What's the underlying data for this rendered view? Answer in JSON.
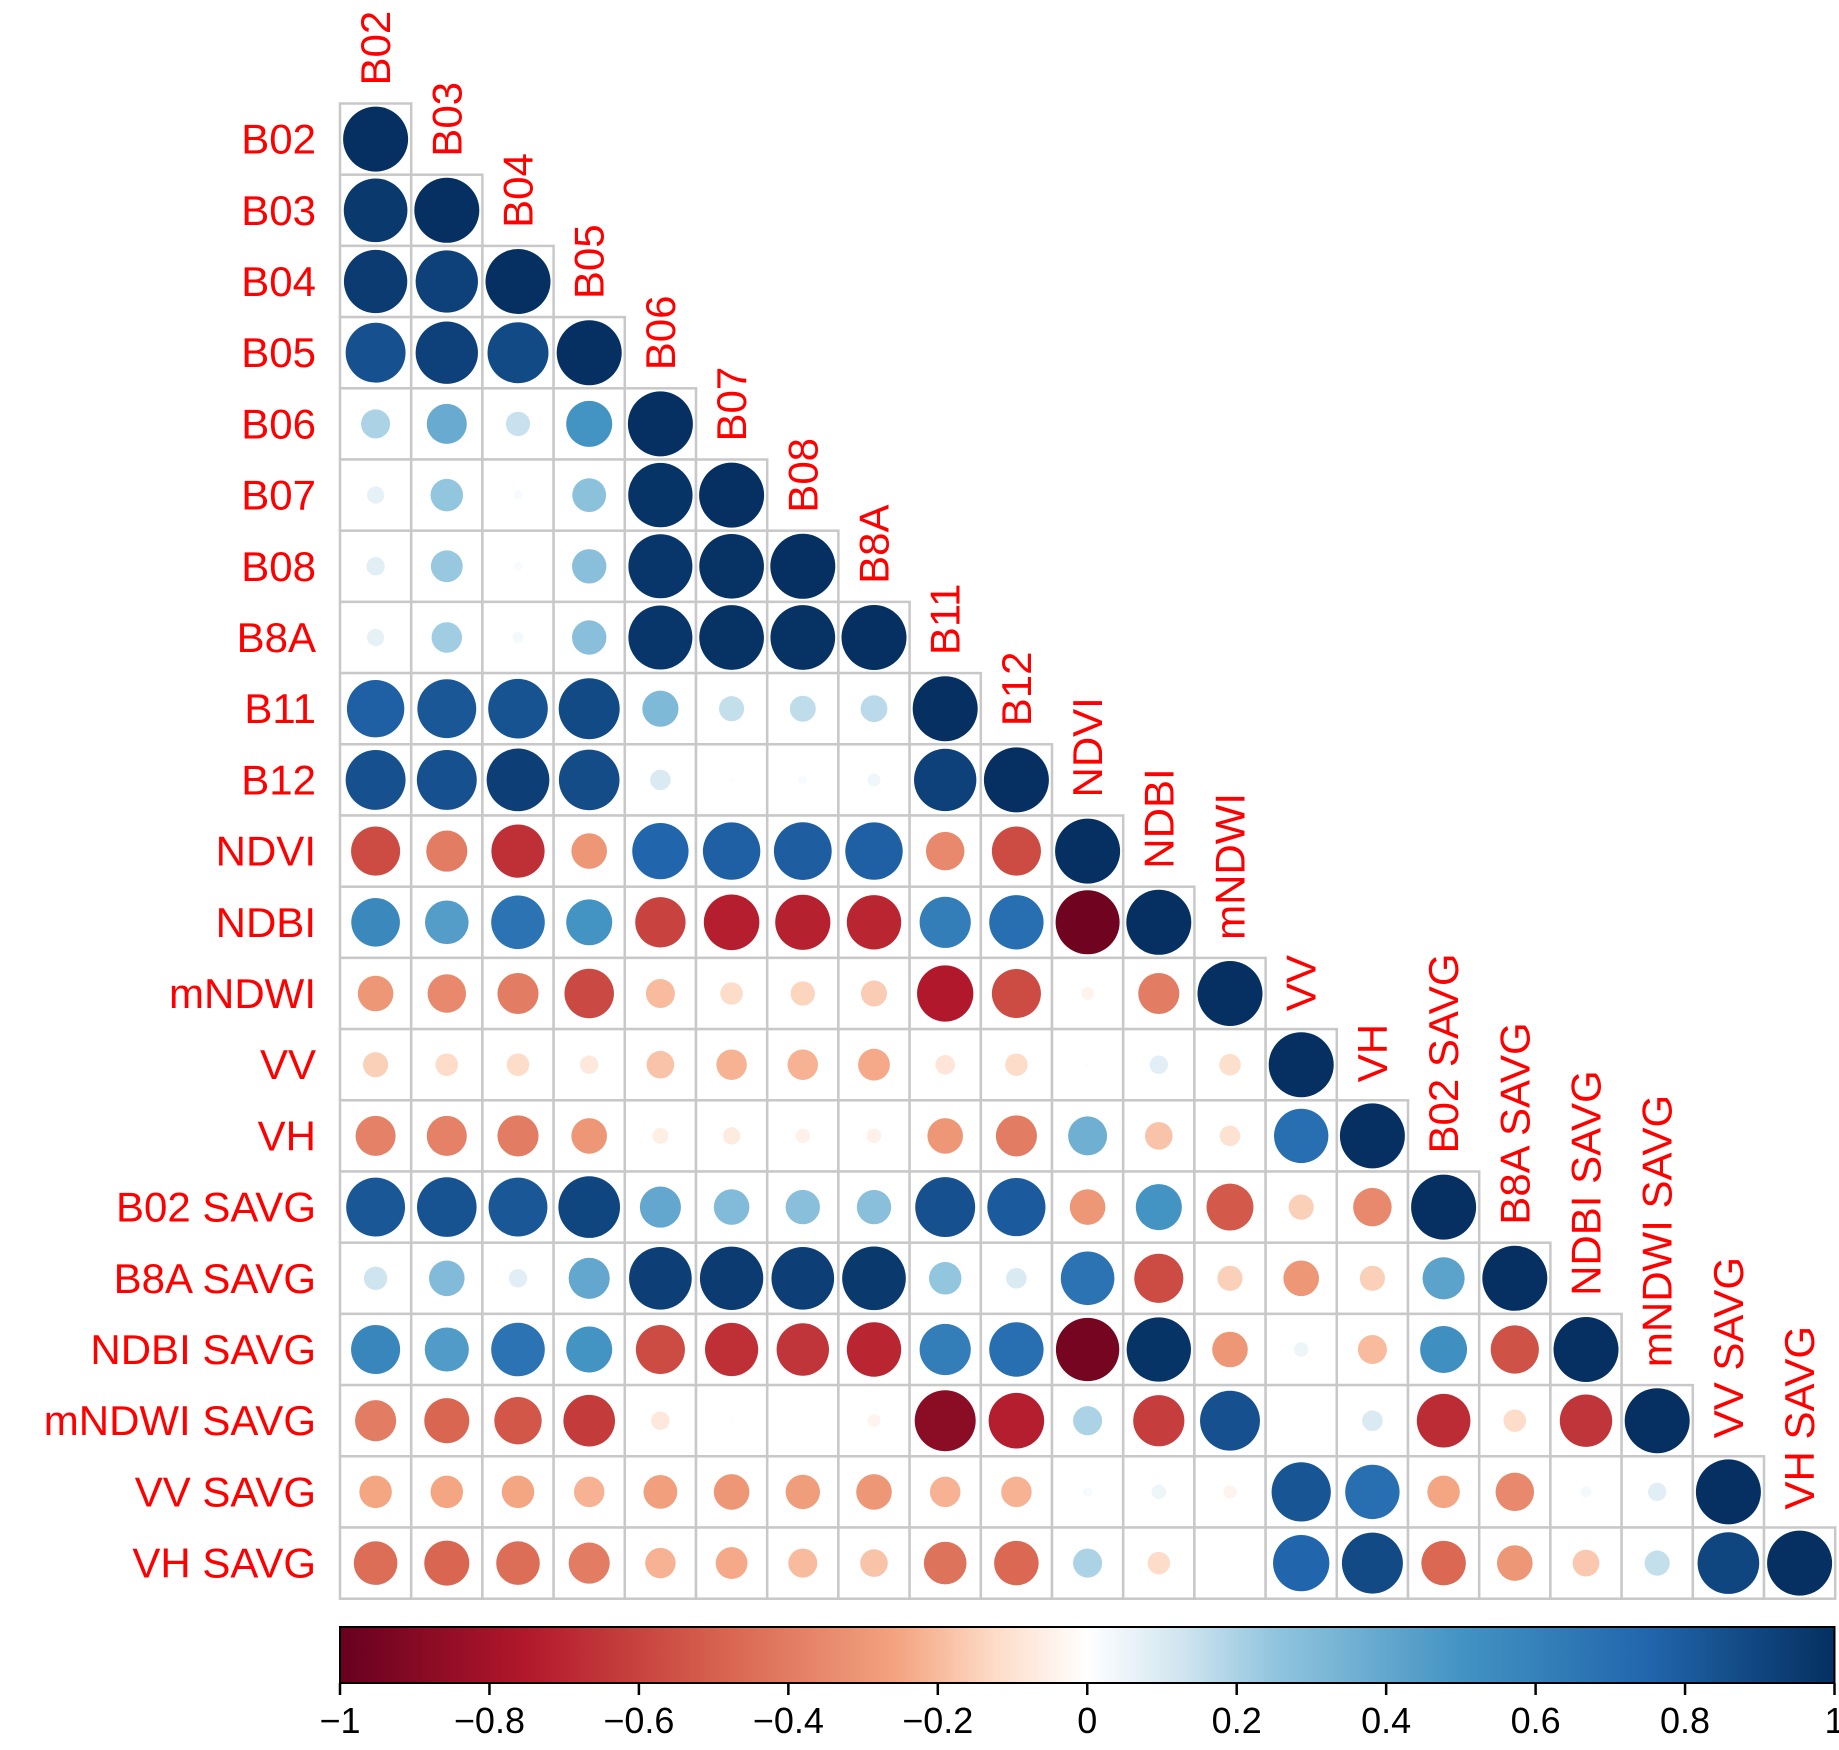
{
  "chart_data": {
    "type": "heatmap",
    "variables": [
      "B02",
      "B03",
      "B04",
      "B05",
      "B06",
      "B07",
      "B08",
      "B8A",
      "B11",
      "B12",
      "NDVI",
      "NDBI",
      "mNDWI",
      "VV",
      "VH",
      "B02 SAVG",
      "B8A SAVG",
      "NDBI SAVG",
      "mNDWI SAVG",
      "VV SAVG",
      "VH SAVG"
    ],
    "matrix": [
      [
        1
      ],
      [
        0.96,
        1
      ],
      [
        0.95,
        0.92,
        1
      ],
      [
        0.85,
        0.92,
        0.88,
        1
      ],
      [
        0.2,
        0.38,
        0.14,
        0.5,
        1
      ],
      [
        0.07,
        0.25,
        0.02,
        0.27,
        0.98,
        1
      ],
      [
        0.08,
        0.24,
        0.02,
        0.28,
        0.97,
        0.99,
        1
      ],
      [
        0.07,
        0.22,
        0.03,
        0.28,
        0.97,
        0.99,
        0.99,
        1
      ],
      [
        0.78,
        0.82,
        0.84,
        0.88,
        0.31,
        0.15,
        0.16,
        0.17,
        1
      ],
      [
        0.85,
        0.85,
        0.93,
        0.87,
        0.1,
        0.01,
        0.02,
        0.04,
        0.92,
        1
      ],
      [
        -0.57,
        -0.4,
        -0.67,
        -0.3,
        0.75,
        0.78,
        0.79,
        0.78,
        -0.35,
        -0.57,
        1
      ],
      [
        0.56,
        0.45,
        0.68,
        0.5,
        -0.6,
        -0.73,
        -0.72,
        -0.7,
        0.62,
        0.7,
        -0.97,
        1
      ],
      [
        -0.3,
        -0.35,
        -0.4,
        -0.58,
        -0.2,
        -0.12,
        -0.14,
        -0.16,
        -0.75,
        -0.57,
        -0.04,
        -0.4,
        1
      ],
      [
        -0.15,
        -0.12,
        -0.12,
        -0.08,
        -0.18,
        -0.22,
        -0.22,
        -0.24,
        -0.09,
        -0.12,
        0.01,
        0.08,
        -0.11,
        1
      ],
      [
        -0.38,
        -0.38,
        -0.4,
        -0.3,
        -0.06,
        -0.07,
        -0.05,
        -0.05,
        -0.3,
        -0.4,
        0.36,
        -0.18,
        -0.1,
        0.7,
        1
      ],
      [
        0.82,
        0.84,
        0.82,
        0.9,
        0.4,
        0.3,
        0.28,
        0.28,
        0.85,
        0.8,
        -0.3,
        0.5,
        -0.52,
        -0.15,
        -0.35,
        1
      ],
      [
        0.13,
        0.3,
        0.08,
        0.4,
        0.93,
        0.95,
        0.93,
        0.96,
        0.25,
        0.1,
        0.68,
        -0.57,
        -0.15,
        -0.3,
        -0.15,
        0.42,
        1
      ],
      [
        0.57,
        0.46,
        0.68,
        0.5,
        -0.57,
        -0.67,
        -0.65,
        -0.7,
        0.62,
        0.7,
        -0.95,
        0.98,
        -0.3,
        0.05,
        -0.2,
        0.52,
        -0.55,
        1
      ],
      [
        -0.4,
        -0.48,
        -0.53,
        -0.63,
        -0.08,
        -0.01,
        0.0,
        -0.04,
        -0.88,
        -0.73,
        0.2,
        -0.62,
        0.85,
        0.0,
        0.1,
        -0.68,
        -0.12,
        -0.65,
        1
      ],
      [
        -0.25,
        -0.25,
        -0.25,
        -0.22,
        -0.27,
        -0.3,
        -0.28,
        -0.3,
        -0.22,
        -0.22,
        0.02,
        0.05,
        -0.04,
        0.83,
        0.7,
        -0.25,
        -0.35,
        0.03,
        0.08,
        1
      ],
      [
        -0.45,
        -0.48,
        -0.45,
        -0.4,
        -0.22,
        -0.24,
        -0.2,
        -0.18,
        -0.43,
        -0.47,
        0.2,
        -0.12,
        0.0,
        0.75,
        0.88,
        -0.47,
        -0.3,
        -0.17,
        0.15,
        0.9,
        1
      ]
    ],
    "colorbar": {
      "ticks": [
        "−1",
        "−0.8",
        "−0.6",
        "−0.4",
        "−0.2",
        "0",
        "0.2",
        "0.4",
        "0.6",
        "0.8",
        "1"
      ],
      "range": [
        -1,
        1
      ],
      "colors": {
        "-1": "#67001f",
        "-0.75": "#b2182b",
        "-0.5": "#d6604d",
        "-0.25": "#f4a582",
        "-0.125": "#fddbc7",
        "0": "#ffffff",
        "0.125": "#d1e5f0",
        "0.25": "#92c5de",
        "0.5": "#4393c3",
        "0.75": "#2166ac",
        "1": "#053061"
      },
      "placement": "bottom"
    },
    "label_color": "#ff0000",
    "grid_color": "#c8c8c8",
    "layout": "lower-triangle"
  }
}
